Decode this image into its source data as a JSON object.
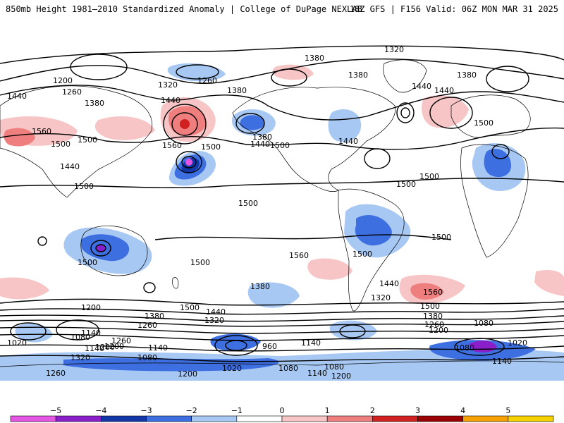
{
  "header": {
    "title_left": "850mb Height 1981–2010 Standardized Anomaly | College of DuPage NEXLAB",
    "title_right": "18Z GFS | F156 Valid: 06Z MON MAR 31 2025"
  },
  "colorbar": {
    "tick_labels": [
      "−5",
      "−4",
      "−3",
      "−2",
      "−1",
      "0",
      "1",
      "2",
      "3",
      "4",
      "5"
    ],
    "colors": [
      "#e455e4",
      "#8a1fc9",
      "#1437a8",
      "#3e6fe0",
      "#a8c8f4",
      "#ffffff",
      "#f7c5c5",
      "#ef7f7f",
      "#d02020",
      "#9a0000",
      "#f5a100",
      "#f7d000"
    ]
  },
  "map": {
    "contour_labels": [
      "1320",
      "1380",
      "1380",
      "1380",
      "1440",
      "1440",
      "1200",
      "1260",
      "1320",
      "1380",
      "1260",
      "1440",
      "1380",
      "1440",
      "1560",
      "1500",
      "1500",
      "1500",
      "1440",
      "1500",
      "1440",
      "1380",
      "1440",
      "1560",
      "1500",
      "1500",
      "1500",
      "1500",
      "1500",
      "1500",
      "1560",
      "1500",
      "1500",
      "1500",
      "1560",
      "1500",
      "1440",
      "1380",
      "1200",
      "1380",
      "1320",
      "1260",
      "1380",
      "1500",
      "1440",
      "1320",
      "1200",
      "1260",
      "1020",
      "1080",
      "1140",
      "1200",
      "1260",
      "1140",
      "1080",
      "960",
      "1140",
      "1020",
      "1080",
      "1080",
      "1140",
      "1200",
      "1260",
      "1320",
      "1200",
      "1080",
      "1020",
      "1140",
      "1080",
      "1140",
      "1200"
    ]
  }
}
